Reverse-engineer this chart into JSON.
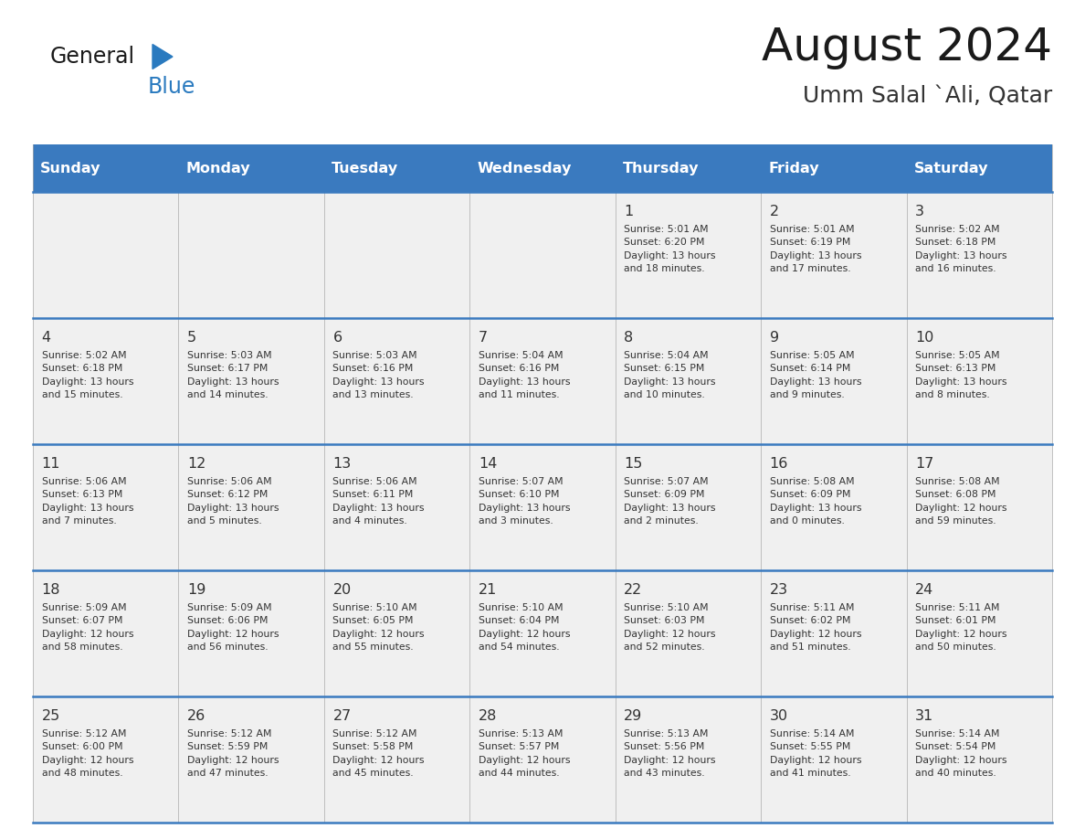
{
  "title": "August 2024",
  "subtitle": "Umm Salal `Ali, Qatar",
  "days_of_week": [
    "Sunday",
    "Monday",
    "Tuesday",
    "Wednesday",
    "Thursday",
    "Friday",
    "Saturday"
  ],
  "header_bg": "#3a7abf",
  "header_text": "#ffffff",
  "row_bg": "#f0f0f0",
  "divider_color": "#3a7abf",
  "text_color": "#333333",
  "cell_data": [
    [
      "",
      "",
      "",
      "",
      "1",
      "2",
      "3"
    ],
    [
      "4",
      "5",
      "6",
      "7",
      "8",
      "9",
      "10"
    ],
    [
      "11",
      "12",
      "13",
      "14",
      "15",
      "16",
      "17"
    ],
    [
      "18",
      "19",
      "20",
      "21",
      "22",
      "23",
      "24"
    ],
    [
      "25",
      "26",
      "27",
      "28",
      "29",
      "30",
      "31"
    ]
  ],
  "cell_info": [
    [
      "",
      "",
      "",
      "",
      "Sunrise: 5:01 AM\nSunset: 6:20 PM\nDaylight: 13 hours\nand 18 minutes.",
      "Sunrise: 5:01 AM\nSunset: 6:19 PM\nDaylight: 13 hours\nand 17 minutes.",
      "Sunrise: 5:02 AM\nSunset: 6:18 PM\nDaylight: 13 hours\nand 16 minutes."
    ],
    [
      "Sunrise: 5:02 AM\nSunset: 6:18 PM\nDaylight: 13 hours\nand 15 minutes.",
      "Sunrise: 5:03 AM\nSunset: 6:17 PM\nDaylight: 13 hours\nand 14 minutes.",
      "Sunrise: 5:03 AM\nSunset: 6:16 PM\nDaylight: 13 hours\nand 13 minutes.",
      "Sunrise: 5:04 AM\nSunset: 6:16 PM\nDaylight: 13 hours\nand 11 minutes.",
      "Sunrise: 5:04 AM\nSunset: 6:15 PM\nDaylight: 13 hours\nand 10 minutes.",
      "Sunrise: 5:05 AM\nSunset: 6:14 PM\nDaylight: 13 hours\nand 9 minutes.",
      "Sunrise: 5:05 AM\nSunset: 6:13 PM\nDaylight: 13 hours\nand 8 minutes."
    ],
    [
      "Sunrise: 5:06 AM\nSunset: 6:13 PM\nDaylight: 13 hours\nand 7 minutes.",
      "Sunrise: 5:06 AM\nSunset: 6:12 PM\nDaylight: 13 hours\nand 5 minutes.",
      "Sunrise: 5:06 AM\nSunset: 6:11 PM\nDaylight: 13 hours\nand 4 minutes.",
      "Sunrise: 5:07 AM\nSunset: 6:10 PM\nDaylight: 13 hours\nand 3 minutes.",
      "Sunrise: 5:07 AM\nSunset: 6:09 PM\nDaylight: 13 hours\nand 2 minutes.",
      "Sunrise: 5:08 AM\nSunset: 6:09 PM\nDaylight: 13 hours\nand 0 minutes.",
      "Sunrise: 5:08 AM\nSunset: 6:08 PM\nDaylight: 12 hours\nand 59 minutes."
    ],
    [
      "Sunrise: 5:09 AM\nSunset: 6:07 PM\nDaylight: 12 hours\nand 58 minutes.",
      "Sunrise: 5:09 AM\nSunset: 6:06 PM\nDaylight: 12 hours\nand 56 minutes.",
      "Sunrise: 5:10 AM\nSunset: 6:05 PM\nDaylight: 12 hours\nand 55 minutes.",
      "Sunrise: 5:10 AM\nSunset: 6:04 PM\nDaylight: 12 hours\nand 54 minutes.",
      "Sunrise: 5:10 AM\nSunset: 6:03 PM\nDaylight: 12 hours\nand 52 minutes.",
      "Sunrise: 5:11 AM\nSunset: 6:02 PM\nDaylight: 12 hours\nand 51 minutes.",
      "Sunrise: 5:11 AM\nSunset: 6:01 PM\nDaylight: 12 hours\nand 50 minutes."
    ],
    [
      "Sunrise: 5:12 AM\nSunset: 6:00 PM\nDaylight: 12 hours\nand 48 minutes.",
      "Sunrise: 5:12 AM\nSunset: 5:59 PM\nDaylight: 12 hours\nand 47 minutes.",
      "Sunrise: 5:12 AM\nSunset: 5:58 PM\nDaylight: 12 hours\nand 45 minutes.",
      "Sunrise: 5:13 AM\nSunset: 5:57 PM\nDaylight: 12 hours\nand 44 minutes.",
      "Sunrise: 5:13 AM\nSunset: 5:56 PM\nDaylight: 12 hours\nand 43 minutes.",
      "Sunrise: 5:14 AM\nSunset: 5:55 PM\nDaylight: 12 hours\nand 41 minutes.",
      "Sunrise: 5:14 AM\nSunset: 5:54 PM\nDaylight: 12 hours\nand 40 minutes."
    ]
  ],
  "logo_text_general": "General",
  "logo_text_blue": "Blue",
  "logo_color_general": "#1a1a1a",
  "logo_color_blue": "#2a7abf",
  "logo_triangle_color": "#2a7abf",
  "fig_width": 11.88,
  "fig_height": 9.18,
  "dpi": 100
}
